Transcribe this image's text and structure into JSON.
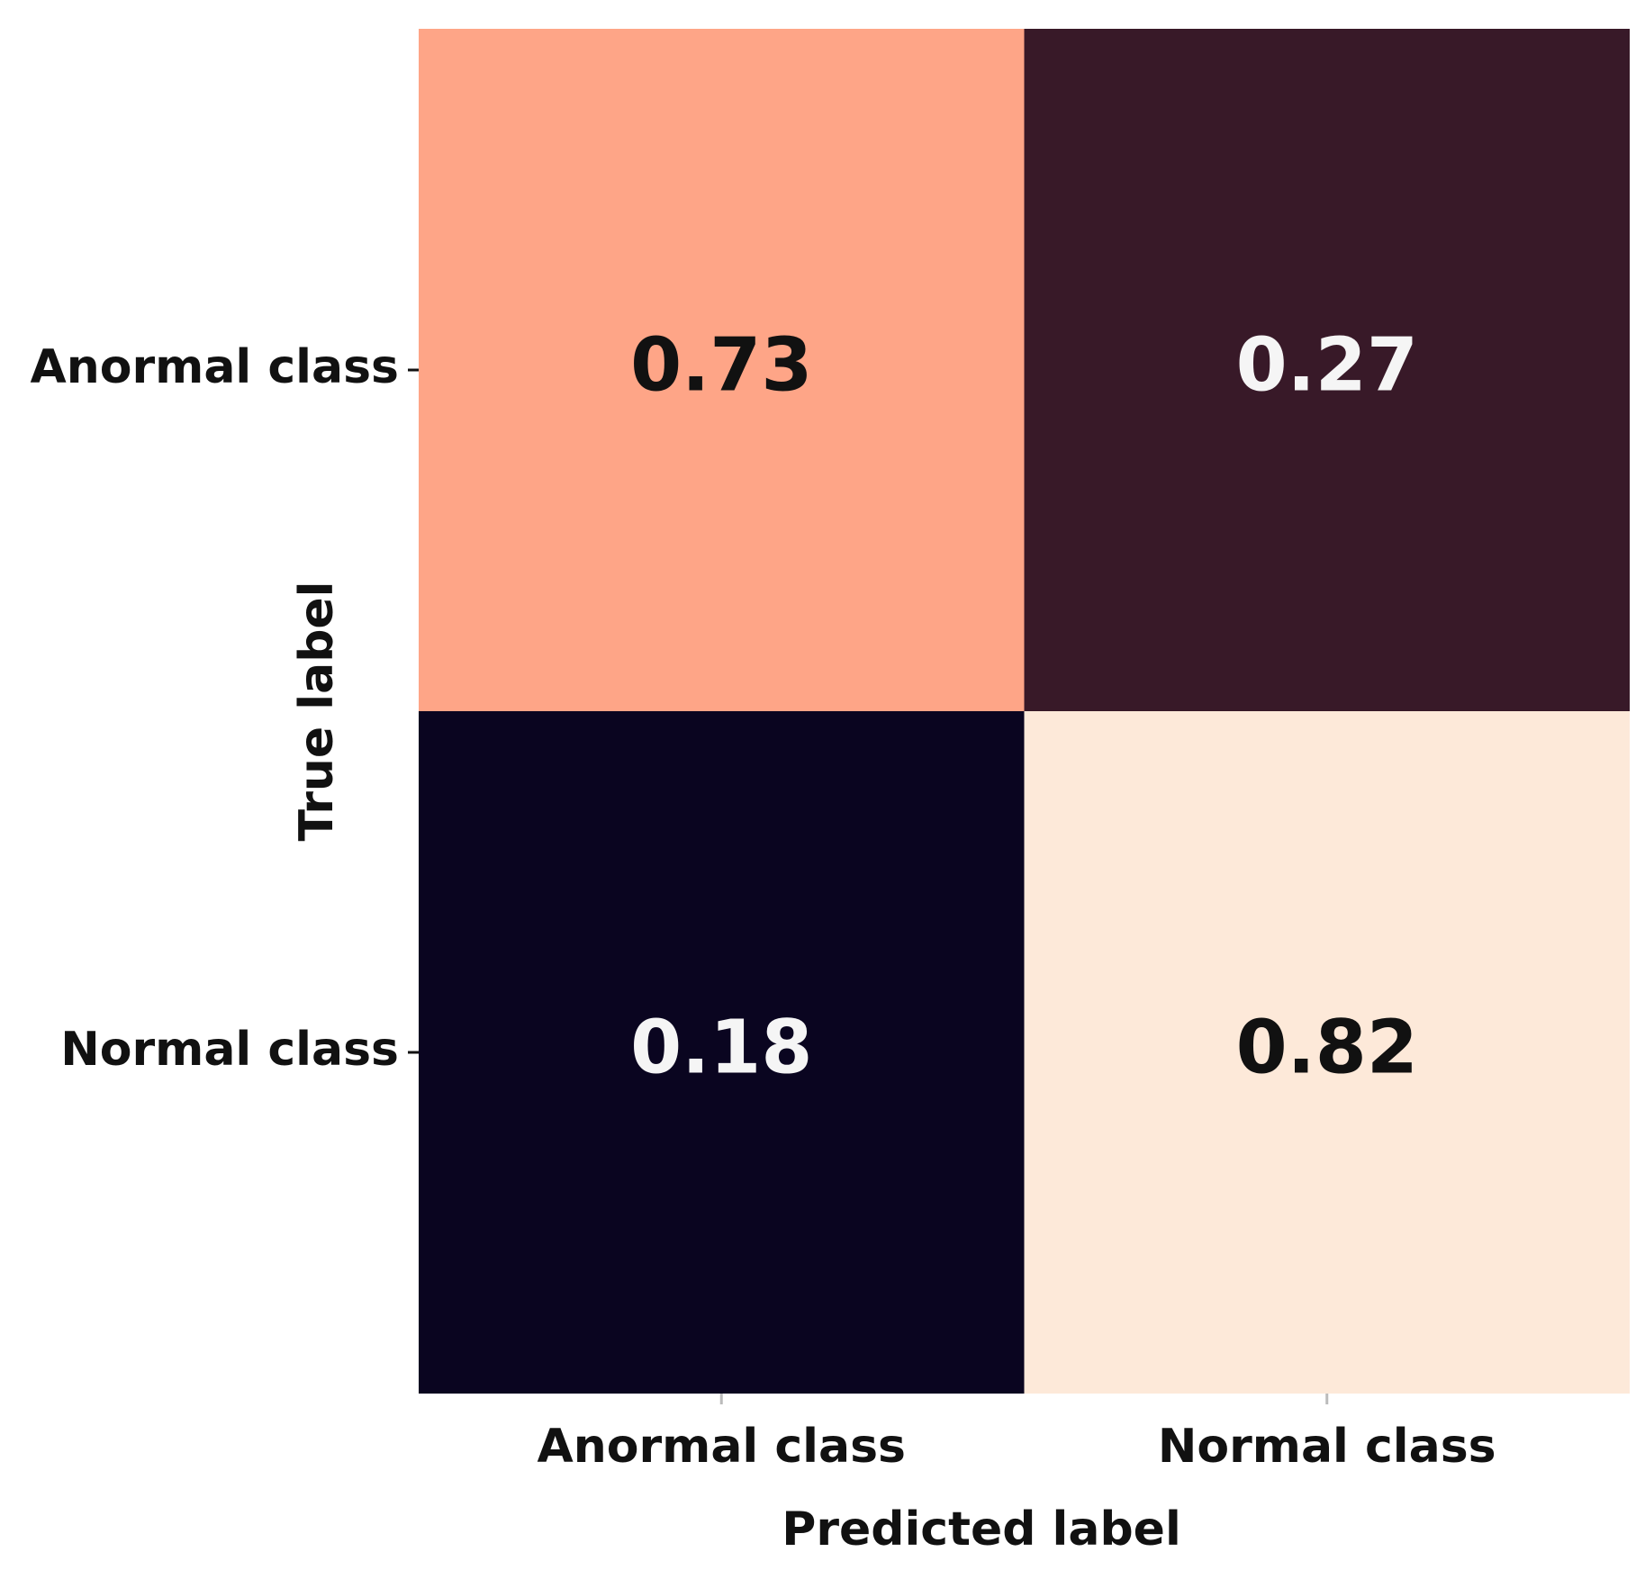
{
  "chart_data": {
    "type": "heatmap",
    "title": "",
    "xlabel": "Predicted label",
    "ylabel": "True label",
    "x_categories": [
      "Anormal class",
      "Normal class"
    ],
    "y_categories": [
      "Anormal class",
      "Normal class"
    ],
    "values": [
      [
        0.73,
        0.27
      ],
      [
        0.18,
        0.82
      ]
    ],
    "value_labels": [
      [
        "0.73",
        "0.27"
      ],
      [
        "0.18",
        "0.82"
      ]
    ],
    "colors": {
      "high": "#fde9d9",
      "mid": "#ff7048",
      "low": "#0a0520",
      "text_dark": "#111111",
      "text_light": "#f5f5f5"
    },
    "colorbar": false,
    "grid": false
  }
}
